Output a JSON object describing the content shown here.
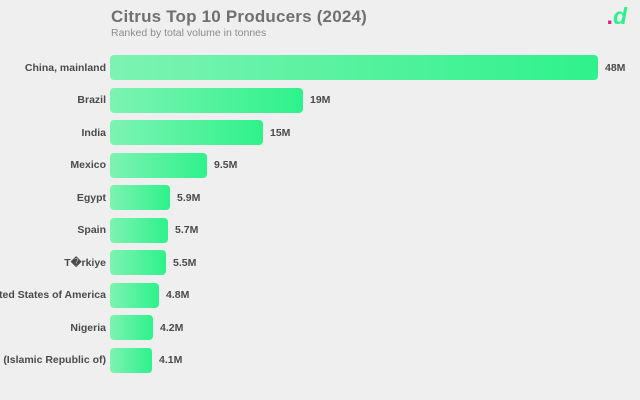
{
  "header": {
    "title": "Citrus Top 10 Producers (2024)",
    "subtitle": "Ranked by total volume in tonnes"
  },
  "logo": {
    "dot": ".",
    "letter": "d",
    "dot_color": "#e0218a",
    "letter_color": "#2df28c"
  },
  "colors": {
    "background": "#efefef",
    "title_text": "#707070",
    "subtitle_text": "#8c8c8c",
    "label_text": "#4a4a4a",
    "bar_gradient_start": "#7df3b2",
    "bar_gradient_end": "#2ef28b"
  },
  "chart_data": {
    "type": "bar",
    "orientation": "horizontal",
    "title": "Citrus Top 10 Producers (2024)",
    "subtitle": "Ranked by total volume in tonnes",
    "unit": "tonnes",
    "xlim": [
      0,
      48000000
    ],
    "grid": false,
    "legend": false,
    "bar_gradient": [
      "#7df3b2",
      "#2ef28b"
    ],
    "bars": [
      {
        "label": "China, mainland",
        "value": 48000000,
        "display": "48M"
      },
      {
        "label": "Brazil",
        "value": 19000000,
        "display": "19M"
      },
      {
        "label": "India",
        "value": 15000000,
        "display": "15M"
      },
      {
        "label": "Mexico",
        "value": 9500000,
        "display": "9.5M"
      },
      {
        "label": "Egypt",
        "value": 5900000,
        "display": "5.9M"
      },
      {
        "label": "Spain",
        "value": 5700000,
        "display": "5.7M"
      },
      {
        "label": "T�rkiye",
        "value": 5500000,
        "display": "5.5M"
      },
      {
        "label": "United States of America",
        "value": 4800000,
        "display": "4.8M"
      },
      {
        "label": "Nigeria",
        "value": 4200000,
        "display": "4.2M"
      },
      {
        "label": "Iran (Islamic Republic of)",
        "value": 4100000,
        "display": "4.1M"
      }
    ]
  }
}
